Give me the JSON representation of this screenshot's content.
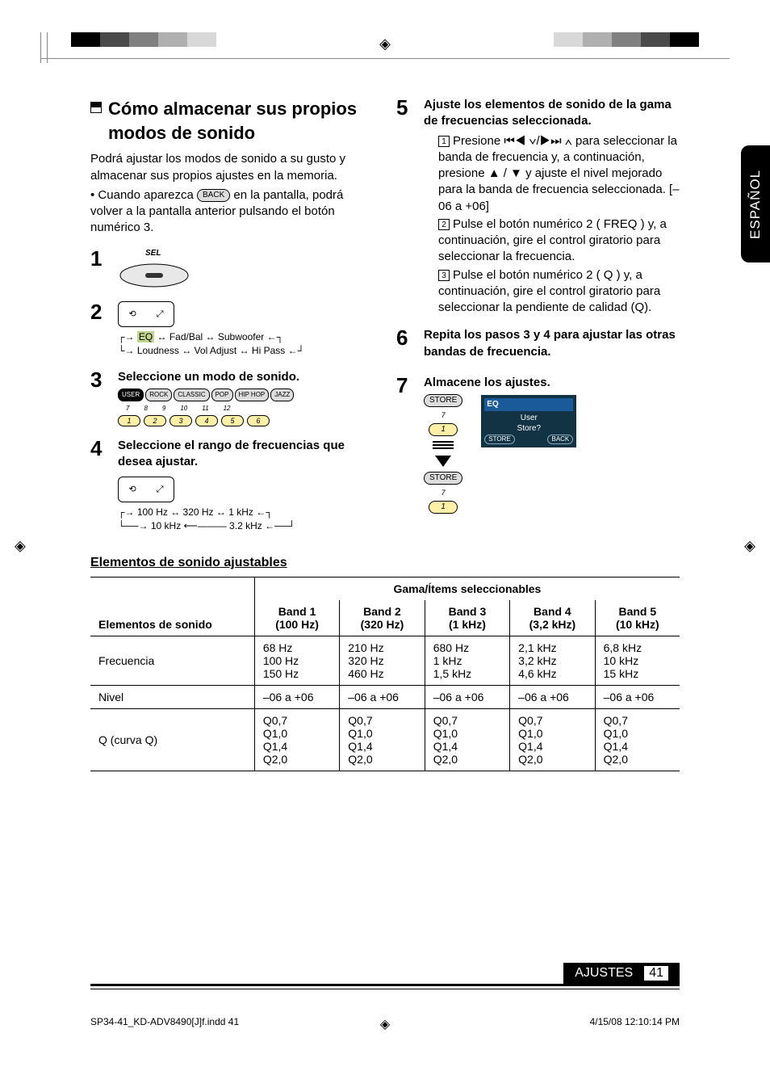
{
  "top_bar_colors_left": [
    "#000000",
    "#4a4a4a",
    "#808080",
    "#b0b0b0",
    "#d8d8d8"
  ],
  "top_bar_colors_right": [
    "#d8d8d8",
    "#b0b0b0",
    "#808080",
    "#4a4a4a",
    "#000000"
  ],
  "side_tab": "ESPAÑOL",
  "col_left": {
    "title": "Cómo almacenar sus propios modos de sonido",
    "intro": "Podrá ajustar los modos de sonido a su gusto y almacenar sus propios ajustes en la memoria.",
    "bullet_pre": "Cuando aparezca ",
    "bullet_pill": "BACK",
    "bullet_post": " en la pantalla, podrá volver a la pantalla anterior pulsando el botón numérico 3.",
    "step1_label": "SEL",
    "step2_flow": "EQ ↔ Fad/Bal ↔ Subwoofer\nLoudness ↔ Vol Adjust ↔ Hi Pass",
    "step3_title": "Seleccione un modo de sonido.",
    "step3_pills": [
      "USER",
      "ROCK",
      "CLASSIC",
      "POP",
      "HIP HOP",
      "JAZZ"
    ],
    "step3_pill_nums": [
      "7",
      "8",
      "9",
      "10",
      "11",
      "12"
    ],
    "step3_btn_nums": [
      "1",
      "2",
      "3",
      "4",
      "5",
      "6"
    ],
    "step4_title": "Seleccione el rango de frecuencias que desea ajustar.",
    "step4_flow": "100 Hz ↔ 320 Hz ↔ 1 kHz\n10 kHz  ⟵———  3.2 kHz"
  },
  "col_right": {
    "step5_title": "Ajuste los elementos de sonido de la gama de frecuencias seleccionada.",
    "step5_items": [
      "Presione ⏮◀ ∨/▶⏭ ∧ para seleccionar la banda de frecuencia y, a continuación, presione ▲ / ▼ y ajuste el nivel mejorado para la banda de frecuencia seleccionada. [–06 a +06]",
      "Pulse el botón numérico 2 ( FREQ ) y, a continuación, gire el control giratorio para seleccionar la frecuencia.",
      "Pulse el botón numérico 2 (  Q  ) y, a continuación, gire el control giratorio para seleccionar la pendiente de calidad (Q)."
    ],
    "step6_title": "Repita los pasos 3 y 4 para ajustar las otras bandas de frecuencia.",
    "step7_title": "Almacene los ajustes.",
    "step7_pill": "STORE",
    "step7_pill_num": "7",
    "step7_btn_num": "1",
    "eq_box": {
      "title": "EQ",
      "line1": "User",
      "line2": "Store?",
      "btn_l": "STORE",
      "btn_r": "BACK"
    }
  },
  "table": {
    "heading": "Elementos de sonido ajustables",
    "col0_header": "Elementos de sonido",
    "group_header": "Gama/Ítems seleccionables",
    "band_headers": [
      {
        "t": "Band 1",
        "s": "(100 Hz)"
      },
      {
        "t": "Band 2",
        "s": "(320 Hz)"
      },
      {
        "t": "Band 3",
        "s": "(1 kHz)"
      },
      {
        "t": "Band 4",
        "s": "(3,2 kHz)"
      },
      {
        "t": "Band 5",
        "s": "(10 kHz)"
      }
    ],
    "rows": [
      {
        "label": "Frecuencia",
        "cells": [
          "68 Hz\n100 Hz\n150 Hz",
          "210 Hz\n320 Hz\n460 Hz",
          "680 Hz\n1 kHz\n1,5 kHz",
          "2,1 kHz\n3,2 kHz\n4,6 kHz",
          "6,8 kHz\n10 kHz\n15 kHz"
        ]
      },
      {
        "label": "Nivel",
        "cells": [
          "–06 a +06",
          "–06 a +06",
          "–06 a +06",
          "–06 a +06",
          "–06 a +06"
        ]
      },
      {
        "label": "Q (curva Q)",
        "cells": [
          "Q0,7\nQ1,0\nQ1,4\nQ2,0",
          "Q0,7\nQ1,0\nQ1,4\nQ2,0",
          "Q0,7\nQ1,0\nQ1,4\nQ2,0",
          "Q0,7\nQ1,0\nQ1,4\nQ2,0",
          "Q0,7\nQ1,0\nQ1,4\nQ2,0"
        ]
      }
    ]
  },
  "footer": {
    "label": "AJUSTES",
    "page": "41"
  },
  "meta": {
    "file": "SP34-41_KD-ADV8490[J]f.indd   41",
    "timestamp": "4/15/08   12:10:14 PM"
  }
}
